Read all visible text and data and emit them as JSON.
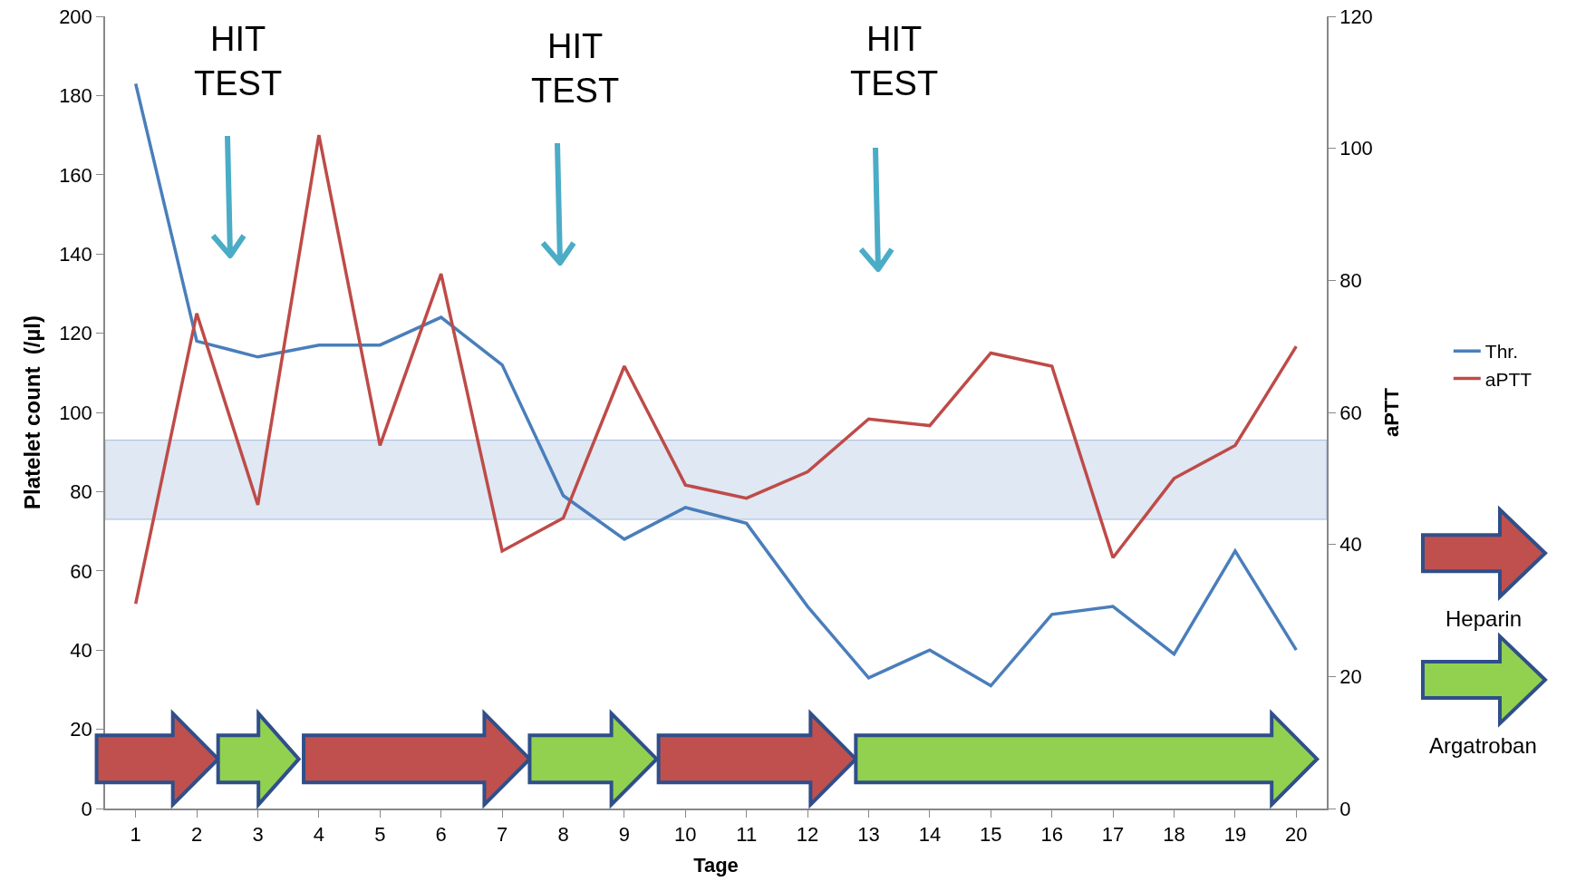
{
  "chart_data": {
    "type": "line",
    "xlabel": "Tage",
    "ylabel": "Platelet count  (/µl)",
    "y2label": "aPTT",
    "x": [
      1,
      2,
      3,
      4,
      5,
      6,
      7,
      8,
      9,
      10,
      11,
      12,
      13,
      14,
      15,
      16,
      17,
      18,
      19,
      20
    ],
    "xlim": [
      0.5,
      20.5
    ],
    "xticks": [
      1,
      2,
      3,
      4,
      5,
      6,
      7,
      8,
      9,
      10,
      11,
      12,
      13,
      14,
      15,
      16,
      17,
      18,
      19,
      20
    ],
    "ylim": [
      0,
      200
    ],
    "yticks": [
      0,
      20,
      40,
      60,
      80,
      100,
      120,
      140,
      160,
      180,
      200
    ],
    "y2lim": [
      0,
      120
    ],
    "y2ticks": [
      0,
      20,
      40,
      60,
      80,
      100,
      120
    ],
    "series": [
      {
        "name": "Thr.",
        "color": "#4a7ebb",
        "values": [
          183,
          118,
          114,
          117,
          117,
          124,
          112,
          79,
          68,
          76,
          72,
          51,
          33,
          40,
          31,
          49,
          51,
          39,
          65,
          40
        ]
      },
      {
        "name": "aPTT",
        "color": "#be4b48",
        "axis": "y2",
        "values": [
          31,
          75,
          46,
          102,
          55,
          81,
          39,
          44,
          67,
          49,
          47,
          51,
          59,
          58,
          69,
          67,
          38,
          50,
          55,
          70
        ]
      }
    ],
    "bands": [
      {
        "axis": "y",
        "from": 73,
        "to": 93,
        "color": "#dce6f2"
      }
    ],
    "annotations": [
      "HIT\nTEST",
      "HIT\nTEST",
      "HIT\nTEST",
      "Heparin",
      "Argatroban"
    ],
    "legend": "right",
    "grid": false,
    "marker": "none",
    "line_style": "solid"
  }
}
